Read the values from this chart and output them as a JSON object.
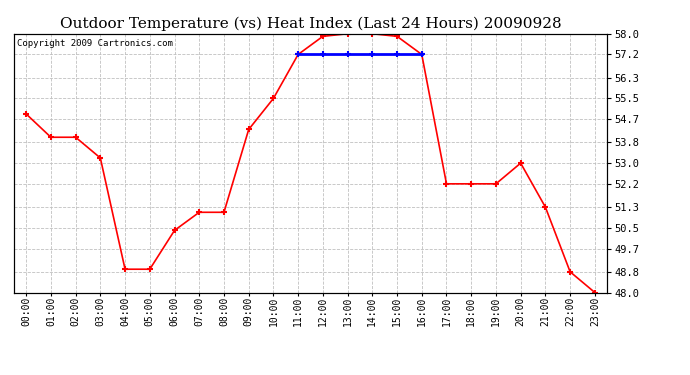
{
  "title": "Outdoor Temperature (vs) Heat Index (Last 24 Hours) 20090928",
  "copyright": "Copyright 2009 Cartronics.com",
  "hours": [
    "00:00",
    "01:00",
    "02:00",
    "03:00",
    "04:00",
    "05:00",
    "06:00",
    "07:00",
    "08:00",
    "09:00",
    "10:00",
    "11:00",
    "12:00",
    "13:00",
    "14:00",
    "15:00",
    "16:00",
    "17:00",
    "18:00",
    "19:00",
    "20:00",
    "21:00",
    "22:00",
    "23:00"
  ],
  "temp_values": [
    54.9,
    54.0,
    54.0,
    53.2,
    48.9,
    48.9,
    50.4,
    51.1,
    51.1,
    54.3,
    55.5,
    57.2,
    57.9,
    58.0,
    58.0,
    57.9,
    57.2,
    52.2,
    52.2,
    52.2,
    53.0,
    51.3,
    48.8,
    48.0
  ],
  "heat_index_values": [
    null,
    null,
    null,
    null,
    null,
    null,
    null,
    null,
    null,
    null,
    null,
    57.2,
    57.2,
    57.2,
    57.2,
    57.2,
    57.2,
    null,
    null,
    null,
    null,
    null,
    null,
    null
  ],
  "temp_color": "#FF0000",
  "heat_index_color": "#0000FF",
  "marker": "+",
  "marker_size": 5,
  "marker_linewidth": 1.5,
  "line_width": 1.2,
  "ylim_min": 48.0,
  "ylim_max": 58.0,
  "yticks": [
    48.0,
    48.8,
    49.7,
    50.5,
    51.3,
    52.2,
    53.0,
    53.8,
    54.7,
    55.5,
    56.3,
    57.2,
    58.0
  ],
  "bg_color": "#FFFFFF",
  "plot_bg_color": "#FFFFFF",
  "grid_color": "#C0C0C0",
  "grid_style": "--",
  "title_fontsize": 11,
  "copyright_fontsize": 6.5,
  "tick_fontsize": 7.5,
  "xlabel_fontsize": 7
}
